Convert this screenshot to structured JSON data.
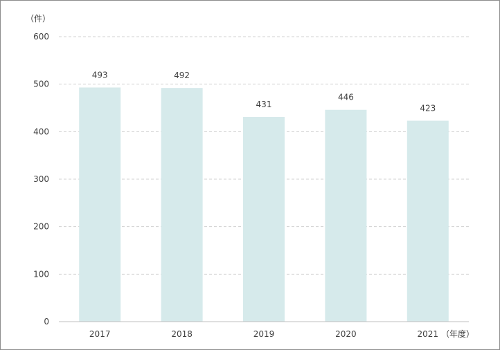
{
  "chart_data": {
    "type": "bar",
    "y_unit_label": "（件）",
    "x_unit_label": "（年度）",
    "categories": [
      "2017",
      "2018",
      "2019",
      "2020",
      "2021"
    ],
    "values": [
      493,
      492,
      431,
      446,
      423
    ],
    "y_ticks": [
      "0",
      "100",
      "200",
      "300",
      "400",
      "500",
      "600"
    ],
    "ylim": [
      0,
      600
    ],
    "grid": true,
    "bar_color": "#d6eaeb",
    "grid_color": "#d0d0d0",
    "axis_color": "#bfbfbf"
  }
}
